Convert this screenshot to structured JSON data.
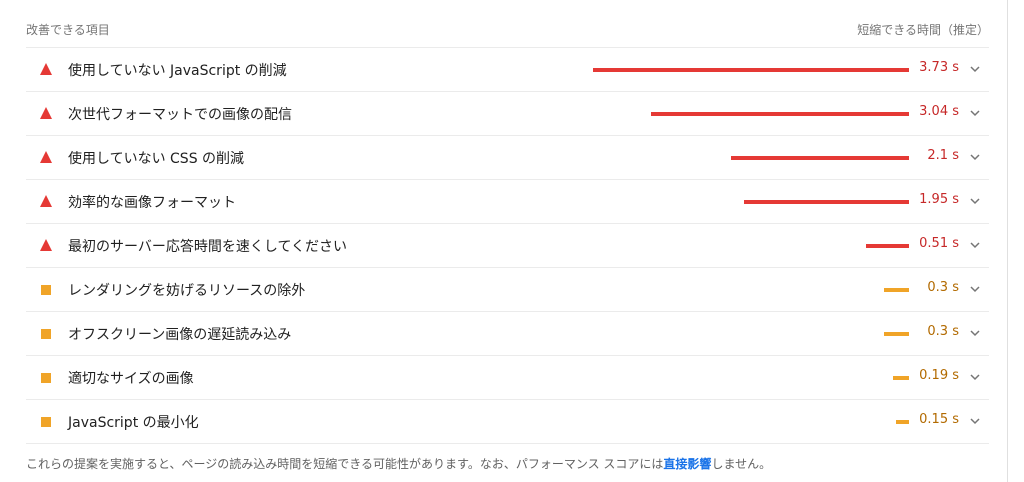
{
  "header": {
    "left": "改善できる項目",
    "right": "短縮できる時間（推定）"
  },
  "max_savings_s": 3.73,
  "opportunities": [
    {
      "title": "使用していない JavaScript の削減",
      "savings": "3.73 s",
      "savings_s": 3.73,
      "status": "fail"
    },
    {
      "title": "次世代フォーマットでの画像の配信",
      "savings": "3.04 s",
      "savings_s": 3.04,
      "status": "fail"
    },
    {
      "title": "使用していない CSS の削減",
      "savings": "2.1 s",
      "savings_s": 2.1,
      "status": "fail"
    },
    {
      "title": "効率的な画像フォーマット",
      "savings": "1.95 s",
      "savings_s": 1.95,
      "status": "fail"
    },
    {
      "title": "最初のサーバー応答時間を速くしてください",
      "savings": "0.51 s",
      "savings_s": 0.51,
      "status": "fail"
    },
    {
      "title": "レンダリングを妨げるリソースの除外",
      "savings": "0.3 s",
      "savings_s": 0.3,
      "status": "average"
    },
    {
      "title": "オフスクリーン画像の遅延読み込み",
      "savings": "0.3 s",
      "savings_s": 0.3,
      "status": "average"
    },
    {
      "title": "適切なサイズの画像",
      "savings": "0.19 s",
      "savings_s": 0.19,
      "status": "average"
    },
    {
      "title": "JavaScript の最小化",
      "savings": "0.15 s",
      "savings_s": 0.15,
      "status": "average"
    }
  ],
  "icons": {
    "fail": "warning-triangle-icon",
    "average": "orange-square-icon",
    "expand": "chevron-down-icon"
  },
  "colors": {
    "fail": "#e53935",
    "average": "#f0a428",
    "link": "#1a73e8"
  },
  "footer": {
    "before": "これらの提案を実施すると、ページの読み込み時間を短縮できる可能性があります。なお、パフォーマンス スコアには",
    "link": "直接影響",
    "after": "しません。"
  }
}
